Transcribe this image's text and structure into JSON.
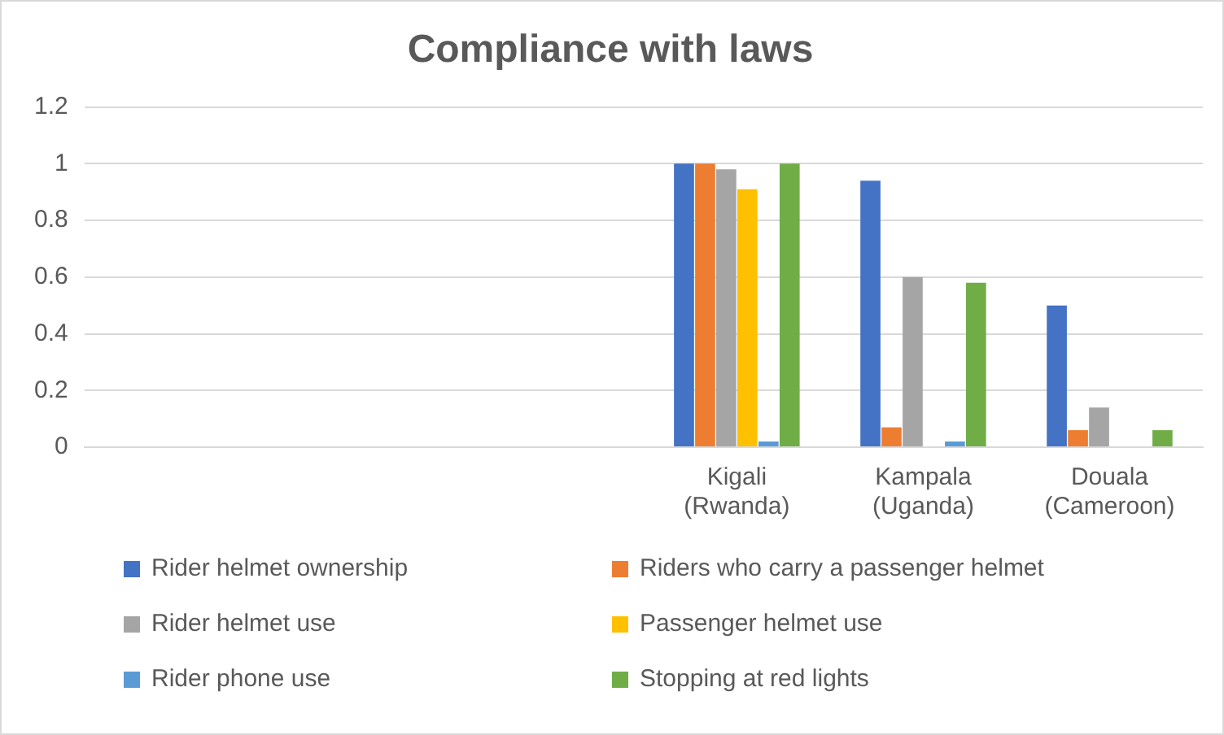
{
  "chart_data": {
    "type": "bar",
    "title": "Compliance with laws",
    "categories": [
      null,
      null,
      null,
      "Kigali (Rwanda)",
      "Kampala (Uganda)",
      "Douala (Cameroon)"
    ],
    "series": [
      {
        "name": "Rider helmet ownership",
        "color": "#4472c4",
        "values": [
          null,
          null,
          null,
          1,
          0.94,
          0.5
        ]
      },
      {
        "name": "Riders who carry a passenger helmet",
        "color": "#ed7d31",
        "values": [
          null,
          null,
          null,
          1,
          0.07,
          0.06
        ]
      },
      {
        "name": "Rider helmet use",
        "color": "#a5a5a5",
        "values": [
          null,
          null,
          null,
          0.98,
          0.6,
          0.14
        ]
      },
      {
        "name": "Passenger helmet use",
        "color": "#ffc000",
        "values": [
          null,
          null,
          null,
          0.91,
          null,
          null
        ]
      },
      {
        "name": "Rider phone use",
        "color": "#5b9bd5",
        "values": [
          null,
          null,
          null,
          0.02,
          0.02,
          null
        ]
      },
      {
        "name": "Stopping at red lights",
        "color": "#70ad47",
        "values": [
          null,
          null,
          null,
          1,
          0.58,
          0.06
        ]
      }
    ],
    "ylim": [
      0,
      1.2
    ],
    "yticks": [
      0,
      0.2,
      0.4,
      0.6,
      0.8,
      1,
      1.2
    ],
    "grid": "y",
    "legend": "bottom"
  }
}
